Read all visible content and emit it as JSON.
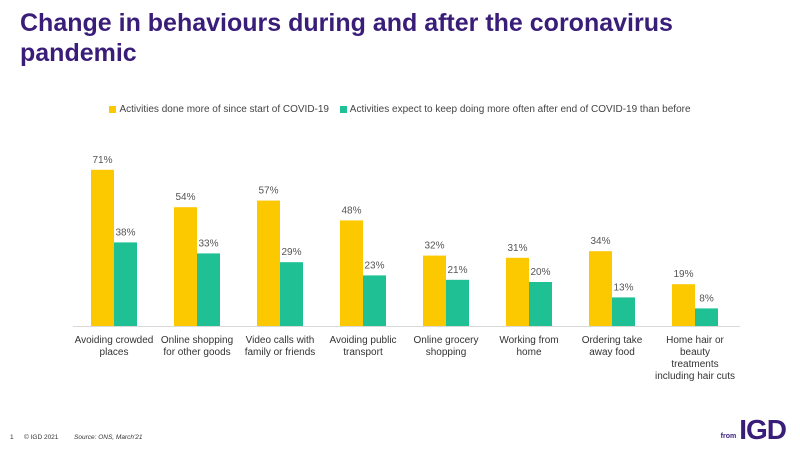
{
  "title": "Change in behaviours during and after the coronavirus pandemic",
  "footer": {
    "page": "1",
    "copyright": "© IGD 2021",
    "source": "Source: ONS, March'21"
  },
  "logo": {
    "from": "from",
    "name": "IGD"
  },
  "colors": {
    "series1": "#fcc800",
    "series2": "#1fc094",
    "title": "#3a1d78"
  },
  "chart_data": {
    "type": "bar",
    "categories": [
      [
        "Avoiding crowded",
        "places"
      ],
      [
        "Online shopping",
        "for other goods"
      ],
      [
        "Video calls with",
        "family or friends"
      ],
      [
        "Avoiding public",
        "transport"
      ],
      [
        "Online grocery",
        "shopping"
      ],
      [
        "Working from",
        "home"
      ],
      [
        "Ordering take",
        "away food"
      ],
      [
        "Home hair or",
        "beauty",
        "treatments",
        "including hair cuts"
      ]
    ],
    "series": [
      {
        "name": "Activities done more of since start of COVID-19",
        "values": [
          71,
          54,
          57,
          48,
          32,
          31,
          34,
          19
        ],
        "labels": [
          "71%",
          "54%",
          "57%",
          "48%",
          "32%",
          "31%",
          "34%",
          "19%"
        ]
      },
      {
        "name": "Activities expect to keep doing more often after end of COVID-19 than before",
        "values": [
          38,
          33,
          29,
          23,
          21,
          20,
          13,
          8
        ],
        "labels": [
          "38%",
          "33%",
          "29%",
          "23%",
          "21%",
          "20%",
          "13%",
          "8%"
        ]
      }
    ],
    "ylim": [
      0,
      100
    ],
    "grid": false,
    "legend": "top"
  }
}
